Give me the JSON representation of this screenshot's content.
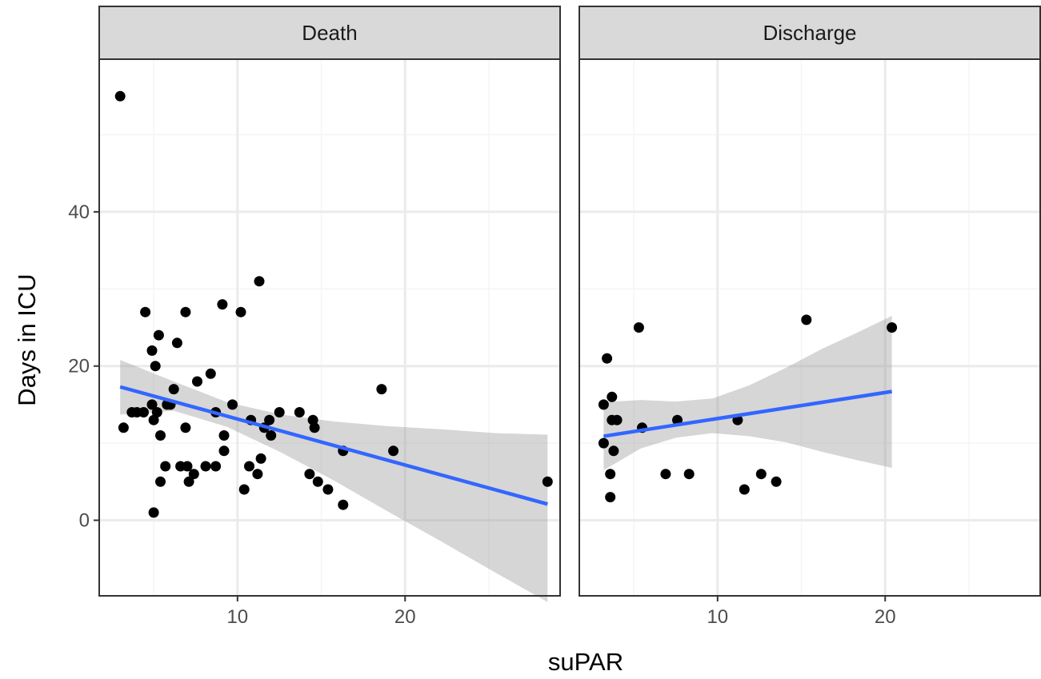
{
  "chart_data": {
    "type": "scatter",
    "facet_variable_values": [
      "Death",
      "Discharge"
    ],
    "xlabel": "suPAR",
    "ylabel": "Days in ICU",
    "xlim": [
      1.75,
      29.25
    ],
    "ylim": [
      -9.8,
      59.8
    ],
    "x_ticks": [
      10,
      20
    ],
    "y_ticks": [
      0,
      20,
      40
    ],
    "grid": true,
    "panels": [
      {
        "strip": "Death",
        "points": [
          [
            3.0,
            55
          ],
          [
            3.2,
            12
          ],
          [
            3.7,
            14
          ],
          [
            4.0,
            14
          ],
          [
            4.4,
            14
          ],
          [
            4.5,
            27
          ],
          [
            4.9,
            22
          ],
          [
            4.9,
            15
          ],
          [
            5.0,
            13
          ],
          [
            5.1,
            20
          ],
          [
            5.2,
            14
          ],
          [
            5.3,
            24
          ],
          [
            5.4,
            11
          ],
          [
            5.4,
            5
          ],
          [
            5.7,
            7
          ],
          [
            5.8,
            15
          ],
          [
            6.0,
            15
          ],
          [
            6.2,
            17
          ],
          [
            6.4,
            23
          ],
          [
            6.6,
            7
          ],
          [
            6.9,
            27
          ],
          [
            6.9,
            12
          ],
          [
            7.0,
            7
          ],
          [
            7.1,
            5
          ],
          [
            7.4,
            6
          ],
          [
            7.6,
            18
          ],
          [
            8.1,
            7
          ],
          [
            8.4,
            19
          ],
          [
            8.7,
            7
          ],
          [
            8.7,
            14
          ],
          [
            9.1,
            28
          ],
          [
            9.2,
            9
          ],
          [
            9.2,
            11
          ],
          [
            9.7,
            15
          ],
          [
            10.2,
            27
          ],
          [
            10.4,
            4
          ],
          [
            10.7,
            7
          ],
          [
            10.8,
            13
          ],
          [
            11.2,
            6
          ],
          [
            11.3,
            31
          ],
          [
            11.4,
            8
          ],
          [
            11.6,
            12
          ],
          [
            11.9,
            13
          ],
          [
            12.0,
            11
          ],
          [
            12.5,
            14
          ],
          [
            13.7,
            14
          ],
          [
            14.3,
            6
          ],
          [
            14.5,
            13
          ],
          [
            14.6,
            12
          ],
          [
            14.8,
            5
          ],
          [
            15.4,
            4
          ],
          [
            16.3,
            2
          ],
          [
            16.3,
            9
          ],
          [
            18.6,
            17
          ],
          [
            19.3,
            9
          ],
          [
            28.5,
            5
          ],
          [
            5.0,
            1
          ]
        ],
        "fit_line": {
          "x": [
            3.0,
            28.5
          ],
          "y": [
            17.3,
            2.1
          ]
        },
        "confidence_band": {
          "x": [
            3.0,
            6.2,
            9.4,
            12.6,
            15.8,
            19.0,
            22.2,
            25.4,
            28.5
          ],
          "lower": [
            13.7,
            14.2,
            12.1,
            8.8,
            5.1,
            1.1,
            -2.8,
            -6.8,
            -10.6
          ],
          "upper": [
            20.8,
            18.0,
            15.3,
            13.7,
            12.8,
            12.2,
            11.8,
            11.3,
            11.1
          ]
        }
      },
      {
        "strip": "Discharge",
        "points": [
          [
            3.2,
            15
          ],
          [
            3.2,
            10
          ],
          [
            3.4,
            21
          ],
          [
            3.6,
            6
          ],
          [
            3.6,
            3
          ],
          [
            3.7,
            16
          ],
          [
            3.7,
            13
          ],
          [
            3.8,
            9
          ],
          [
            4.0,
            13
          ],
          [
            5.3,
            25
          ],
          [
            5.5,
            12
          ],
          [
            6.9,
            6
          ],
          [
            7.6,
            13
          ],
          [
            8.3,
            6
          ],
          [
            11.2,
            13
          ],
          [
            11.6,
            4
          ],
          [
            12.6,
            6
          ],
          [
            13.5,
            5
          ],
          [
            15.3,
            26
          ],
          [
            20.4,
            25
          ]
        ],
        "fit_line": {
          "x": [
            3.2,
            20.4
          ],
          "y": [
            10.9,
            16.7
          ]
        },
        "confidence_band": {
          "x": [
            3.2,
            5.4,
            7.5,
            9.7,
            11.9,
            14.1,
            16.2,
            18.3,
            20.4
          ],
          "lower": [
            6.5,
            9.3,
            10.7,
            11.3,
            10.9,
            10.1,
            8.9,
            7.8,
            6.8
          ],
          "upper": [
            15.3,
            15.6,
            15.4,
            15.8,
            17.5,
            19.8,
            22.2,
            24.3,
            26.5
          ]
        }
      }
    ],
    "colors": {
      "points": "#000000",
      "fit_line": "#3366FF",
      "band": "#999999",
      "strip_fill": "#D9D9D9",
      "grid_major": "#EBEBEB",
      "grid_minor": "#F5F5F5",
      "border": "#333333"
    }
  }
}
